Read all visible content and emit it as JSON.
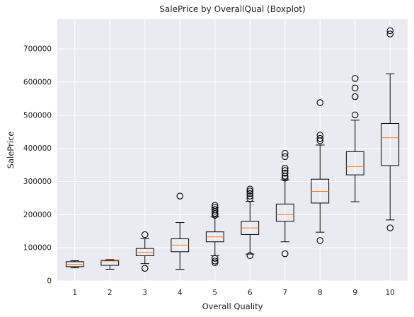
{
  "chart_data": {
    "type": "boxplot",
    "title": "SalePrice by OverallQual (Boxplot)",
    "xlabel": "Overall Quality",
    "ylabel": "SalePrice",
    "ylim": [
      0,
      790000
    ],
    "yticks": [
      0,
      100000,
      200000,
      300000,
      400000,
      500000,
      600000,
      700000
    ],
    "ytick_labels": [
      "0",
      "100000",
      "200000",
      "300000",
      "400000",
      "500000",
      "600000",
      "700000"
    ],
    "grid": true,
    "categories": [
      "1",
      "2",
      "3",
      "4",
      "5",
      "6",
      "7",
      "8",
      "9",
      "10"
    ],
    "boxes": [
      {
        "q1": 43000,
        "median": 50000,
        "q3": 58000,
        "whisker_low": 39300,
        "whisker_high": 61000,
        "outliers": []
      },
      {
        "q1": 47000,
        "median": 60000,
        "q3": 62000,
        "whisker_low": 35300,
        "whisker_high": 64000,
        "outliers": []
      },
      {
        "q1": 76000,
        "median": 86000,
        "q3": 98000,
        "whisker_low": 52000,
        "whisker_high": 127000,
        "outliers": [
          139600,
          37900
        ]
      },
      {
        "q1": 88000,
        "median": 108000,
        "q3": 127000,
        "whisker_low": 34900,
        "whisker_high": 176000,
        "outliers": [
          256000
        ]
      },
      {
        "q1": 118000,
        "median": 133000,
        "q3": 148000,
        "whisker_low": 76000,
        "whisker_high": 193000,
        "outliers": [
          228000,
          222000,
          216000,
          210000,
          204000,
          198000,
          68000,
          60000,
          55000
        ]
      },
      {
        "q1": 140000,
        "median": 160000,
        "q3": 180000,
        "whisker_low": 81000,
        "whisker_high": 240000,
        "outliers": [
          277000,
          271000,
          264000,
          256000,
          248000,
          76500
        ]
      },
      {
        "q1": 180000,
        "median": 200000,
        "q3": 232000,
        "whisker_low": 118000,
        "whisker_high": 305000,
        "outliers": [
          385000,
          375000,
          340000,
          333000,
          325000,
          316000,
          310000,
          82000
        ]
      },
      {
        "q1": 235000,
        "median": 270000,
        "q3": 307000,
        "whisker_low": 147000,
        "whisker_high": 410000,
        "outliers": [
          538000,
          440000,
          430000,
          423000,
          122000
        ]
      },
      {
        "q1": 320000,
        "median": 345000,
        "q3": 390000,
        "whisker_low": 239000,
        "whisker_high": 485000,
        "outliers": [
          611000,
          582000,
          556000,
          501000
        ]
      },
      {
        "q1": 348000,
        "median": 432000,
        "q3": 475000,
        "whisker_low": 184000,
        "whisker_high": 625000,
        "outliers": [
          755000,
          745000,
          160000
        ]
      }
    ],
    "colors": {
      "background": "#eaeaf2",
      "grid": "#ffffff",
      "box": "#000000",
      "median": "#ff7f0e"
    }
  }
}
